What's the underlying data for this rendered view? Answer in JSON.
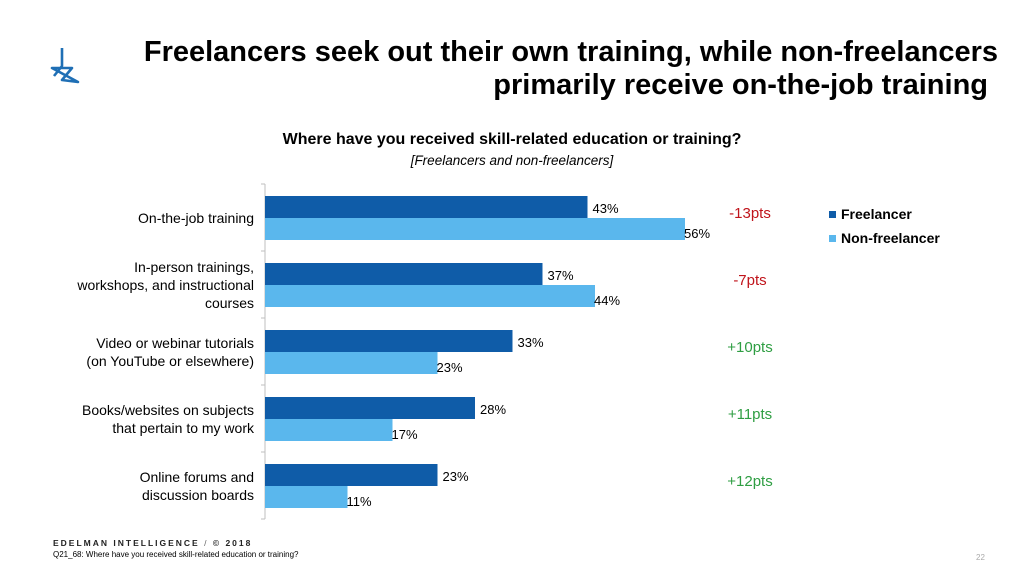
{
  "title": {
    "line1": "Freelancers seek out their own training, while non-freelancers",
    "line2": "primarily receive on-the-job training"
  },
  "colors": {
    "freelancer": "#0f5ca8",
    "non_freelancer": "#5ab7ed",
    "negative_diff": "#c0141b",
    "positive_diff": "#2f9e43",
    "logo": "#1f6fb5"
  },
  "chart_data": {
    "type": "bar",
    "orientation": "horizontal",
    "title": "Where have you received skill-related education or training?",
    "subtitle": "[Freelancers and non-freelancers]",
    "categories": [
      "On-the-job training",
      "In-person trainings, workshops, and instructional courses",
      "Video or webinar tutorials (on YouTube or elsewhere)",
      "Books/websites on subjects that pertain to my work",
      "Online forums and discussion boards"
    ],
    "series": [
      {
        "name": "Freelancer",
        "values": [
          43,
          37,
          33,
          28,
          23
        ]
      },
      {
        "name": "Non-freelancer",
        "values": [
          56,
          44,
          23,
          17,
          11
        ]
      }
    ],
    "value_suffix": "%",
    "differences": [
      "-13pts",
      "-7pts",
      "+10pts",
      "+11pts",
      "+12pts"
    ],
    "xlim": [
      0,
      100
    ],
    "grid": false,
    "legend_position": "right"
  },
  "category_lines": [
    [
      "On-the-job training"
    ],
    [
      "In-person trainings,",
      "workshops, and instructional",
      "courses"
    ],
    [
      "Video or webinar tutorials",
      "(on YouTube or elsewhere)"
    ],
    [
      "Books/websites on subjects",
      "that pertain to my work"
    ],
    [
      "Online forums and",
      "discussion boards"
    ]
  ],
  "footer": {
    "brand": "EDELMAN INTELLIGENCE",
    "separator": " / ",
    "copyright": "© 2018",
    "note": "Q21_68: Where have you received skill-related education or training?",
    "page": "22"
  }
}
